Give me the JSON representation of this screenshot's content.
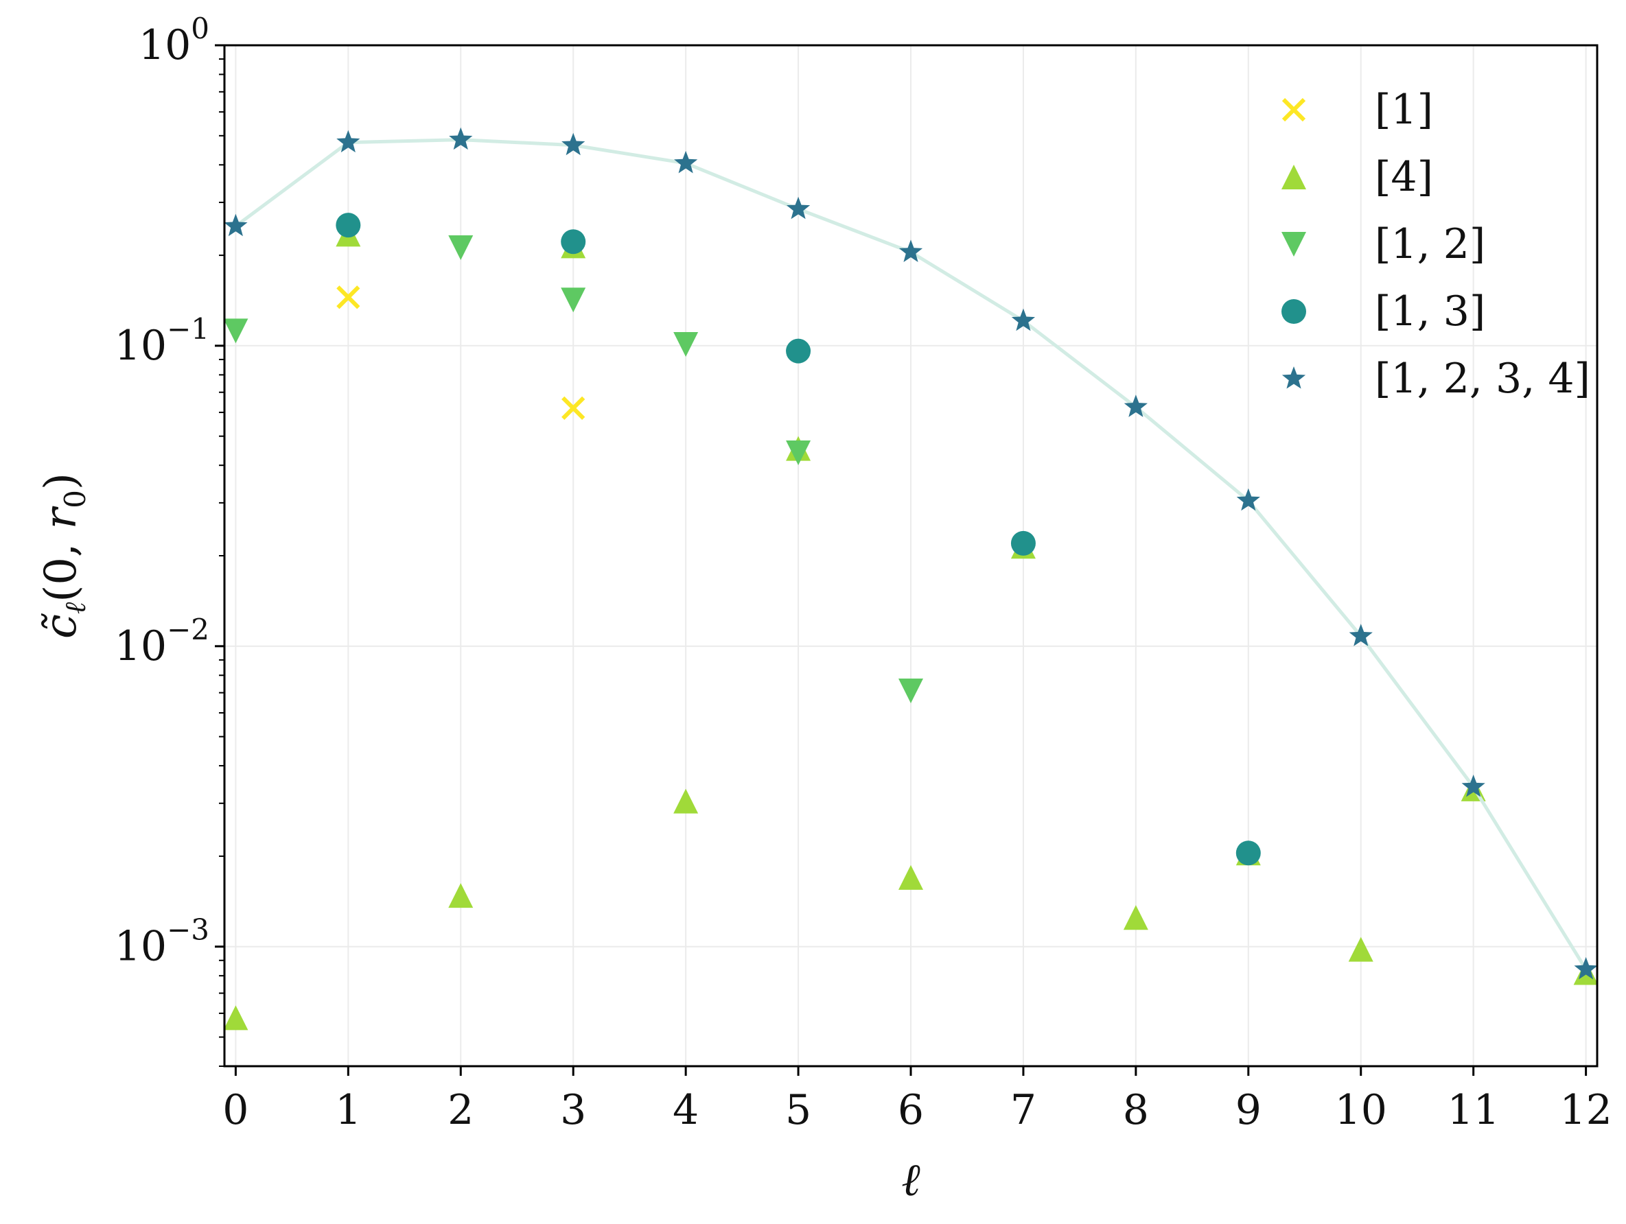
{
  "chart_data": {
    "type": "scatter",
    "xlabel": "ℓ",
    "ylabel": "c̃ℓ(0, r0)",
    "ylabel_parts": {
      "base": "c̃",
      "sub1": "ℓ",
      "args_open": "(0, ",
      "r": "r",
      "sub2": "0",
      "args_close": ")"
    },
    "x_scale": "linear",
    "y_scale": "log",
    "xlim": [
      -0.1,
      12.1
    ],
    "ylim": [
      0.0004,
      1
    ],
    "xticks": [
      0,
      1,
      2,
      3,
      4,
      5,
      6,
      7,
      8,
      9,
      10,
      11,
      12
    ],
    "xtick_labels": [
      "0",
      "1",
      "2",
      "3",
      "4",
      "5",
      "6",
      "7",
      "8",
      "9",
      "10",
      "11",
      "12"
    ],
    "yticks": [
      {
        "value": 1,
        "base": "10",
        "exp": "0"
      },
      {
        "value": 0.1,
        "base": "10",
        "exp": "−1"
      },
      {
        "value": 0.01,
        "base": "10",
        "exp": "−2"
      },
      {
        "value": 0.001,
        "base": "10",
        "exp": "−3"
      }
    ],
    "grid": true,
    "legend_position": "top-right",
    "series": [
      {
        "name": "[1]",
        "marker": "x",
        "color": "#fde725",
        "x": [
          1,
          3
        ],
        "y": [
          0.145,
          0.062
        ]
      },
      {
        "name": "[4]",
        "marker": "triangle-up",
        "color": "#a0da39",
        "x": [
          0,
          1,
          2,
          3,
          4,
          5,
          6,
          7,
          8,
          9,
          10,
          11,
          12
        ],
        "y": [
          0.00058,
          0.235,
          0.00148,
          0.215,
          0.00305,
          0.0455,
          0.0017,
          0.0215,
          0.00125,
          0.00205,
          0.00098,
          0.00335,
          0.00082
        ]
      },
      {
        "name": "[1, 2]",
        "marker": "triangle-down",
        "color": "#5ec962",
        "x": [
          0,
          2,
          3,
          4,
          5,
          6
        ],
        "y": [
          0.112,
          0.212,
          0.142,
          0.101,
          0.044,
          0.0071
        ]
      },
      {
        "name": "[1, 3]",
        "marker": "circle",
        "color": "#21918c",
        "x": [
          1,
          3,
          5,
          7,
          9
        ],
        "y": [
          0.252,
          0.222,
          0.096,
          0.022,
          0.00205
        ]
      },
      {
        "name": "[1, 2, 3, 4]",
        "marker": "star",
        "color": "#2c728e",
        "line_color": "#d2ece4",
        "x": [
          0,
          1,
          2,
          3,
          4,
          5,
          6,
          7,
          8,
          9,
          10,
          11,
          12
        ],
        "y": [
          0.25,
          0.475,
          0.485,
          0.465,
          0.405,
          0.285,
          0.205,
          0.121,
          0.0625,
          0.0305,
          0.0108,
          0.0034,
          0.00084
        ]
      }
    ]
  }
}
